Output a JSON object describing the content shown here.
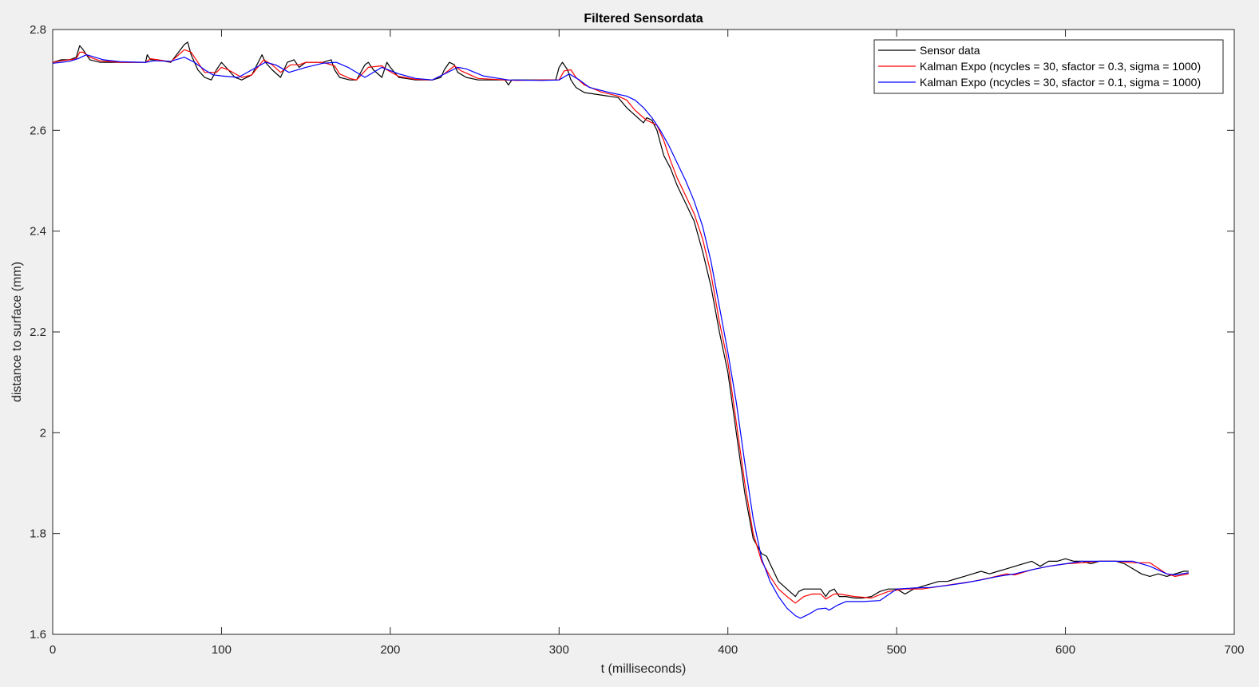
{
  "chart_data": {
    "type": "line",
    "title": "Filtered Sensordata",
    "xlabel": "t (milliseconds)",
    "ylabel": "distance to surface (mm)",
    "xlim": [
      0,
      700
    ],
    "ylim": [
      1.6,
      2.8
    ],
    "xticks": [
      0,
      100,
      200,
      300,
      400,
      500,
      600,
      700
    ],
    "yticks": [
      1.6,
      1.8,
      2.0,
      2.2,
      2.4,
      2.6,
      2.8
    ],
    "xtick_labels": [
      "0",
      "100",
      "200",
      "300",
      "400",
      "500",
      "600",
      "700"
    ],
    "ytick_labels": [
      "1.6",
      "1.8",
      "2",
      "2.2",
      "2.4",
      "2.6",
      "2.8"
    ],
    "grid": false,
    "legend_position": "top-right",
    "background": "#ffffff",
    "figure_background": "#f0f0f0",
    "series": [
      {
        "name": "Sensor data",
        "color": "#000000",
        "x": [
          0,
          5,
          10,
          14,
          16,
          18,
          22,
          28,
          40,
          55,
          56,
          58,
          62,
          70,
          78,
          80,
          82,
          86,
          90,
          94,
          97,
          100,
          104,
          108,
          112,
          118,
          124,
          126,
          130,
          135,
          139,
          143,
          146,
          150,
          155,
          160,
          165,
          167,
          170,
          176,
          180,
          185,
          187,
          190,
          195,
          198,
          200,
          205,
          215,
          225,
          230,
          232,
          235,
          238,
          240,
          245,
          252,
          258,
          268,
          270,
          272,
          275,
          280,
          290,
          298,
          300,
          302,
          305,
          307,
          310,
          315,
          325,
          335,
          340,
          345,
          350,
          352,
          355,
          358,
          362,
          366,
          370,
          375,
          380,
          385,
          390,
          395,
          400,
          405,
          410,
          415,
          420,
          423,
          425,
          430,
          435,
          440,
          442,
          445,
          450,
          455,
          458,
          460,
          463,
          466,
          470,
          475,
          480,
          485,
          490,
          495,
          500,
          505,
          510,
          515,
          520,
          525,
          530,
          535,
          540,
          545,
          550,
          555,
          560,
          565,
          570,
          575,
          580,
          585,
          590,
          595,
          600,
          605,
          610,
          615,
          620,
          625,
          630,
          635,
          640,
          645,
          650,
          655,
          660,
          665,
          670,
          673
        ],
        "y": [
          2.735,
          2.74,
          2.74,
          2.745,
          2.768,
          2.76,
          2.74,
          2.735,
          2.735,
          2.735,
          2.75,
          2.74,
          2.74,
          2.735,
          2.77,
          2.775,
          2.75,
          2.72,
          2.705,
          2.7,
          2.72,
          2.735,
          2.72,
          2.705,
          2.7,
          2.71,
          2.75,
          2.735,
          2.72,
          2.705,
          2.735,
          2.74,
          2.725,
          2.735,
          2.735,
          2.735,
          2.74,
          2.72,
          2.705,
          2.7,
          2.7,
          2.73,
          2.735,
          2.72,
          2.705,
          2.735,
          2.725,
          2.705,
          2.7,
          2.7,
          2.705,
          2.72,
          2.735,
          2.73,
          2.715,
          2.705,
          2.7,
          2.7,
          2.7,
          2.69,
          2.7,
          2.7,
          2.7,
          2.7,
          2.7,
          2.725,
          2.735,
          2.72,
          2.7,
          2.685,
          2.675,
          2.67,
          2.665,
          2.645,
          2.63,
          2.615,
          2.625,
          2.62,
          2.6,
          2.55,
          2.525,
          2.49,
          2.455,
          2.42,
          2.36,
          2.29,
          2.2,
          2.12,
          2.0,
          1.88,
          1.79,
          1.76,
          1.755,
          1.74,
          1.705,
          1.69,
          1.675,
          1.685,
          1.69,
          1.69,
          1.69,
          1.675,
          1.685,
          1.69,
          1.675,
          1.675,
          1.672,
          1.672,
          1.675,
          1.685,
          1.69,
          1.69,
          1.68,
          1.69,
          1.695,
          1.7,
          1.705,
          1.705,
          1.71,
          1.715,
          1.72,
          1.725,
          1.72,
          1.725,
          1.73,
          1.735,
          1.74,
          1.745,
          1.735,
          1.745,
          1.745,
          1.75,
          1.745,
          1.745,
          1.74,
          1.745,
          1.745,
          1.745,
          1.74,
          1.73,
          1.72,
          1.715,
          1.72,
          1.715,
          1.72,
          1.725,
          1.725
        ]
      },
      {
        "name": "Kalman Expo (ncycles = 30, sfactor = 0.3, sigma = 1000)",
        "color": "#ff0000",
        "x": [
          0,
          5,
          10,
          14,
          16,
          18,
          22,
          28,
          40,
          55,
          58,
          62,
          70,
          78,
          82,
          86,
          90,
          97,
          100,
          104,
          112,
          118,
          125,
          130,
          135,
          141,
          146,
          150,
          160,
          167,
          170,
          176,
          180,
          187,
          195,
          198,
          205,
          215,
          225,
          232,
          238,
          242,
          252,
          268,
          275,
          290,
          300,
          303,
          307,
          310,
          315,
          325,
          335,
          340,
          345,
          350,
          352,
          358,
          362,
          366,
          370,
          375,
          380,
          385,
          390,
          395,
          400,
          405,
          410,
          415,
          420,
          425,
          430,
          435,
          440,
          445,
          450,
          455,
          458,
          463,
          466,
          475,
          485,
          495,
          505,
          510,
          515,
          525,
          535,
          545,
          555,
          565,
          570,
          580,
          590,
          600,
          610,
          620,
          630,
          640,
          650,
          660,
          665,
          673
        ],
        "y": [
          2.735,
          2.738,
          2.74,
          2.742,
          2.755,
          2.755,
          2.745,
          2.738,
          2.735,
          2.735,
          2.742,
          2.74,
          2.736,
          2.76,
          2.755,
          2.735,
          2.715,
          2.715,
          2.725,
          2.72,
          2.705,
          2.71,
          2.74,
          2.73,
          2.715,
          2.73,
          2.73,
          2.735,
          2.735,
          2.728,
          2.712,
          2.703,
          2.7,
          2.725,
          2.728,
          2.72,
          2.707,
          2.701,
          2.7,
          2.712,
          2.728,
          2.718,
          2.703,
          2.7,
          2.699,
          2.7,
          2.7,
          2.718,
          2.72,
          2.705,
          2.69,
          2.676,
          2.668,
          2.66,
          2.64,
          2.625,
          2.62,
          2.61,
          2.58,
          2.54,
          2.505,
          2.47,
          2.435,
          2.385,
          2.315,
          2.22,
          2.14,
          2.02,
          1.9,
          1.8,
          1.745,
          1.715,
          1.69,
          1.675,
          1.662,
          1.675,
          1.68,
          1.68,
          1.67,
          1.68,
          1.68,
          1.675,
          1.672,
          1.685,
          1.69,
          1.69,
          1.69,
          1.695,
          1.7,
          1.705,
          1.712,
          1.72,
          1.718,
          1.728,
          1.735,
          1.74,
          1.742,
          1.745,
          1.745,
          1.742,
          1.742,
          1.72,
          1.715,
          1.72
        ]
      },
      {
        "name": "Kalman Expo (ncycles = 30, sfactor = 0.1, sigma = 1000)",
        "color": "#0000ff",
        "x": [
          0,
          5,
          10,
          15,
          20,
          25,
          30,
          40,
          55,
          60,
          70,
          78,
          84,
          90,
          95,
          100,
          110,
          118,
          126,
          132,
          140,
          150,
          160,
          168,
          175,
          185,
          195,
          205,
          215,
          225,
          240,
          245,
          255,
          270,
          290,
          300,
          306,
          312,
          318,
          330,
          340,
          345,
          350,
          355,
          360,
          365,
          370,
          375,
          380,
          385,
          390,
          395,
          400,
          405,
          410,
          415,
          420,
          425,
          430,
          435,
          440,
          443,
          448,
          453,
          458,
          460,
          465,
          470,
          480,
          490,
          500,
          510,
          520,
          530,
          540,
          550,
          560,
          570,
          580,
          590,
          600,
          610,
          620,
          630,
          640,
          650,
          660,
          665,
          673
        ],
        "y": [
          2.733,
          2.735,
          2.737,
          2.742,
          2.75,
          2.745,
          2.74,
          2.736,
          2.735,
          2.738,
          2.737,
          2.745,
          2.735,
          2.72,
          2.71,
          2.708,
          2.705,
          2.72,
          2.735,
          2.73,
          2.715,
          2.725,
          2.733,
          2.735,
          2.725,
          2.705,
          2.725,
          2.712,
          2.703,
          2.7,
          2.725,
          2.722,
          2.708,
          2.7,
          2.699,
          2.7,
          2.712,
          2.7,
          2.685,
          2.675,
          2.668,
          2.66,
          2.645,
          2.625,
          2.6,
          2.57,
          2.535,
          2.5,
          2.46,
          2.41,
          2.34,
          2.25,
          2.16,
          2.06,
          1.94,
          1.83,
          1.75,
          1.705,
          1.675,
          1.652,
          1.637,
          1.632,
          1.64,
          1.65,
          1.652,
          1.648,
          1.658,
          1.665,
          1.665,
          1.667,
          1.69,
          1.692,
          1.693,
          1.697,
          1.702,
          1.708,
          1.715,
          1.72,
          1.728,
          1.735,
          1.74,
          1.745,
          1.745,
          1.745,
          1.745,
          1.735,
          1.72,
          1.718,
          1.722
        ]
      }
    ]
  }
}
